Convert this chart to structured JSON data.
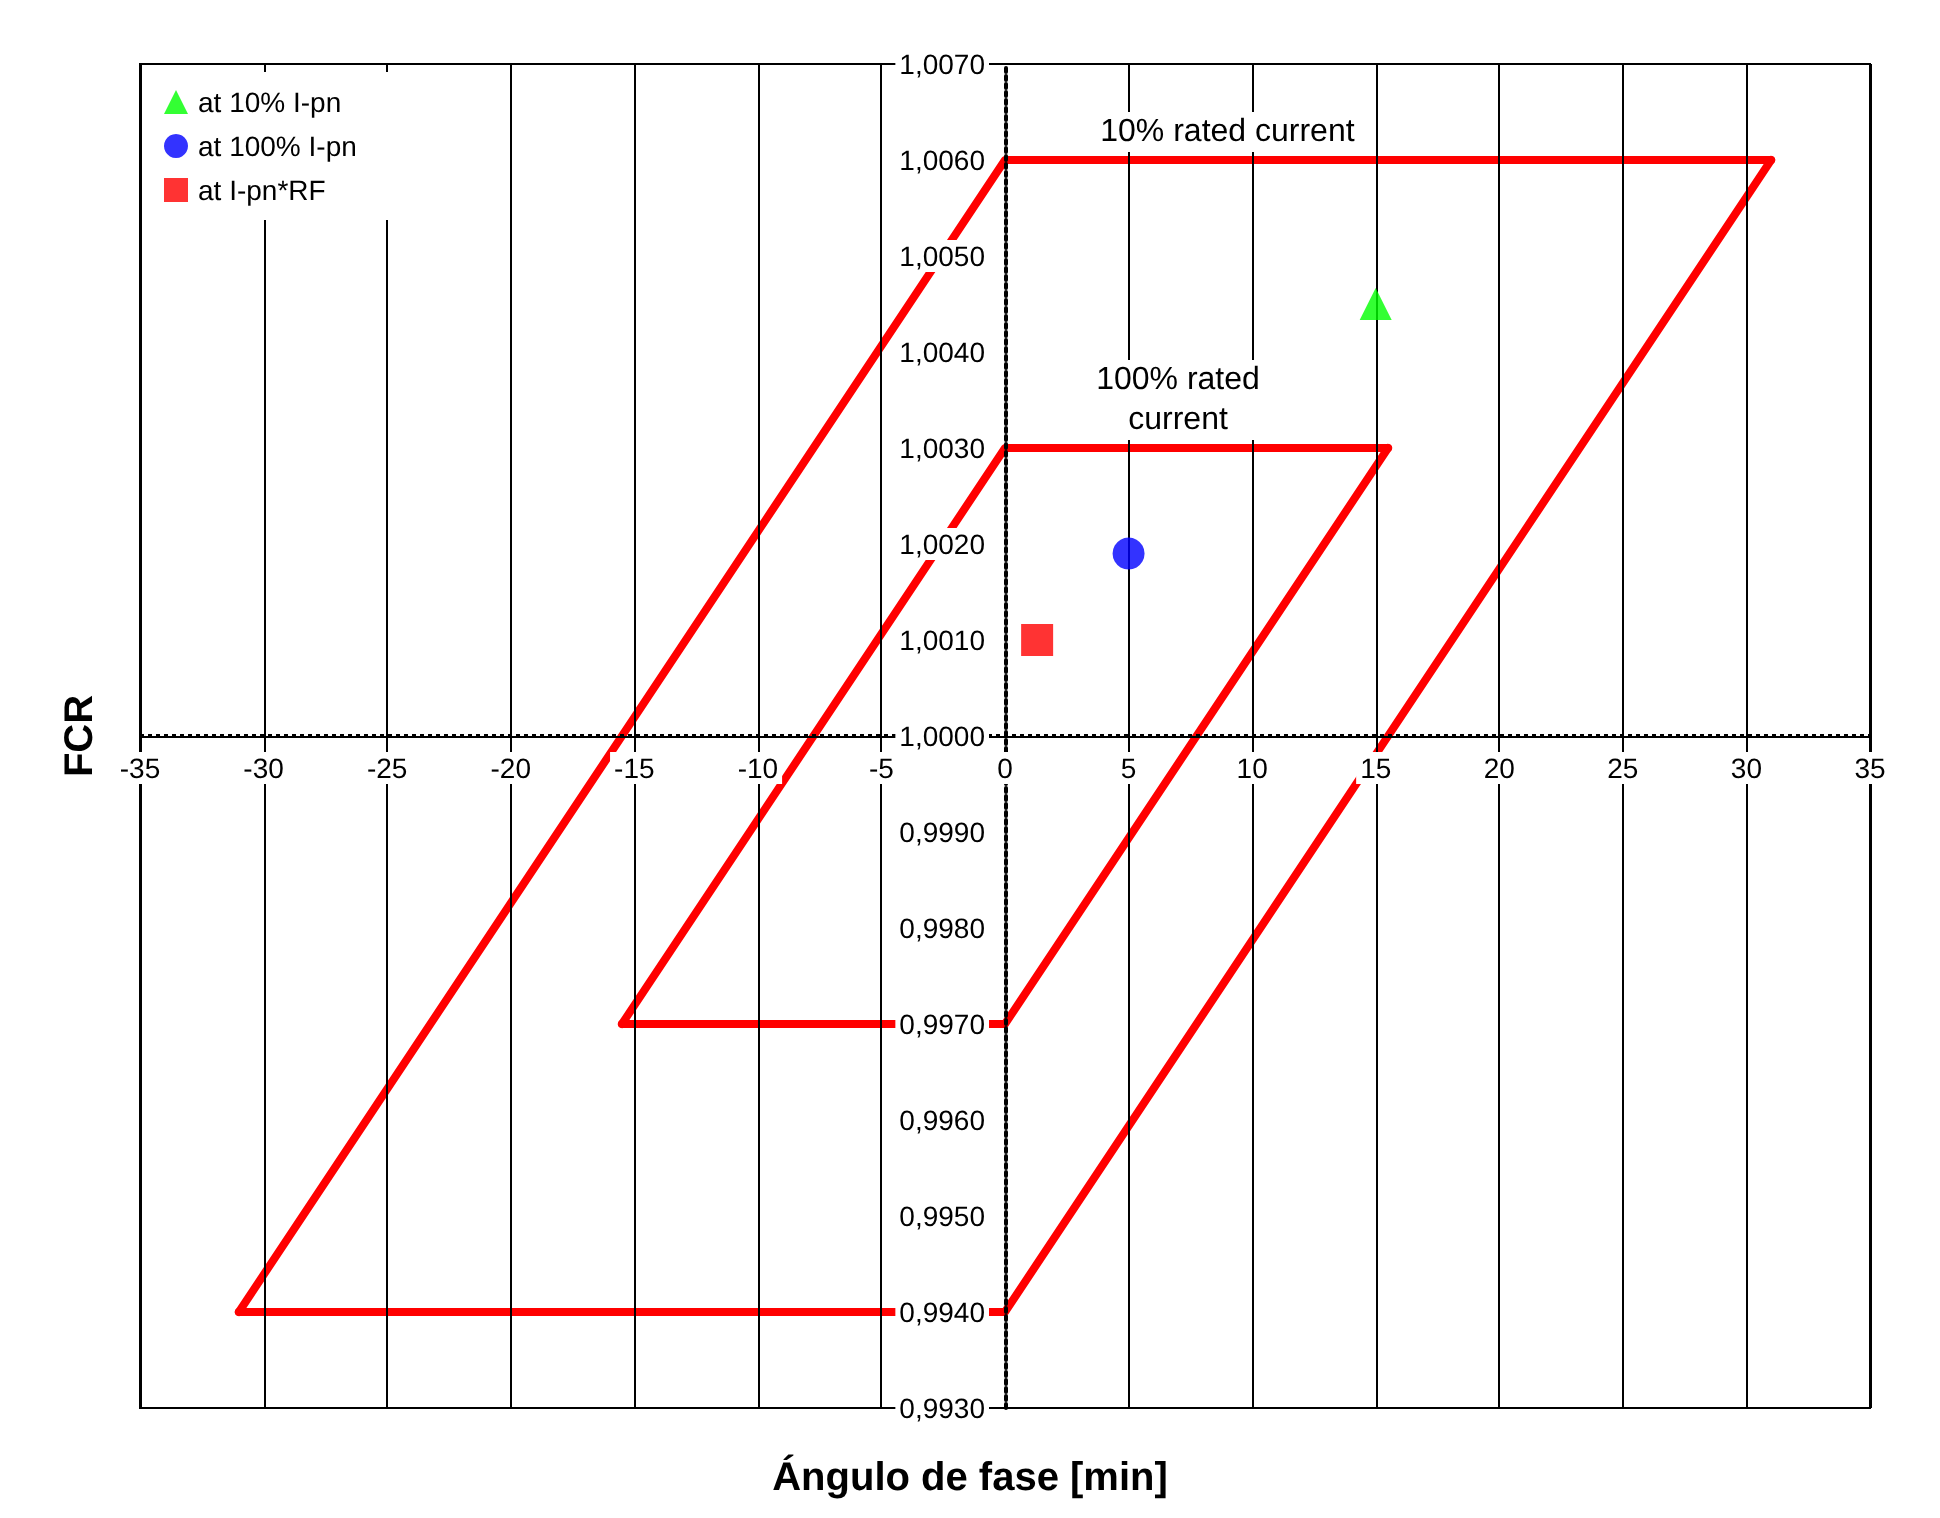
{
  "chart_data": {
    "type": "scatter",
    "xlabel": "Ángulo de fase [min]",
    "ylabel": "FCR",
    "xlim": [
      -35,
      35
    ],
    "xticks": [
      -35,
      -30,
      -25,
      -20,
      -15,
      -10,
      -5,
      0,
      5,
      10,
      15,
      20,
      25,
      30,
      35
    ],
    "ylim": [
      0.993,
      1.007
    ],
    "yticks": [
      {
        "value": 0.993,
        "label": "0,9930"
      },
      {
        "value": 0.994,
        "label": "0,9940"
      },
      {
        "value": 0.995,
        "label": "0,9950"
      },
      {
        "value": 0.996,
        "label": "0,9960"
      },
      {
        "value": 0.997,
        "label": "0,9970"
      },
      {
        "value": 0.998,
        "label": "0,9980"
      },
      {
        "value": 0.999,
        "label": "0,9990"
      },
      {
        "value": 1.0,
        "label": "1,0000"
      },
      {
        "value": 1.001,
        "label": "1,0010"
      },
      {
        "value": 1.002,
        "label": "1,0020"
      },
      {
        "value": 1.003,
        "label": "1,0030"
      },
      {
        "value": 1.004,
        "label": "1,0040"
      },
      {
        "value": 1.005,
        "label": "1,0050"
      },
      {
        "value": 1.006,
        "label": "1,0060"
      },
      {
        "value": 1.007,
        "label": "1,0070"
      }
    ],
    "grid": true,
    "legend": "top left",
    "ref_lines": [
      {
        "axis": "y",
        "value": 1.0,
        "color": "#000000",
        "line_style": "dotted"
      }
    ],
    "series": [
      {
        "name": "at 10% I-pn",
        "color": "#00ff00",
        "marker": "triangle",
        "x": [
          15
        ],
        "values": [
          1.0045
        ]
      },
      {
        "name": "at 100% I-pn",
        "color": "#0000ff",
        "marker": "circle",
        "x": [
          5
        ],
        "values": [
          1.0019
        ]
      },
      {
        "name": "at I-pn*RF",
        "color": "#ff0000",
        "marker": "square",
        "x": [
          1.3
        ],
        "values": [
          1.001
        ]
      },
      {
        "type": "line",
        "color": "#ff0000",
        "marker": "none",
        "x": [
          -31,
          0,
          31
        ],
        "values": [
          0.994,
          1.006,
          1.006
        ]
      },
      {
        "type": "line",
        "color": "#ff0000",
        "marker": "none",
        "x": [
          -31,
          0,
          31
        ],
        "values": [
          0.994,
          0.994,
          1.006
        ]
      },
      {
        "type": "line",
        "color": "#ff0000",
        "marker": "none",
        "x": [
          -15.5,
          0,
          15.5
        ],
        "values": [
          0.997,
          1.003,
          1.003
        ]
      },
      {
        "type": "line",
        "color": "#ff0000",
        "marker": "none",
        "x": [
          -15.5,
          0,
          15.5
        ],
        "values": [
          0.997,
          0.997,
          1.003
        ]
      }
    ],
    "annotations": [
      {
        "text": "10% rated current",
        "x": 9,
        "y": 1.006
      },
      {
        "text": "100% rated\ncurrent",
        "x": 7,
        "y": 1.003
      }
    ]
  }
}
